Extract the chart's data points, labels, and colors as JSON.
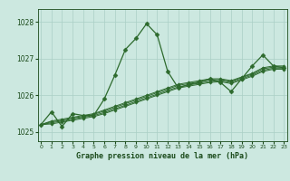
{
  "x": [
    0,
    1,
    2,
    3,
    4,
    5,
    6,
    7,
    8,
    9,
    10,
    11,
    12,
    13,
    14,
    15,
    16,
    17,
    18,
    19,
    20,
    21,
    22,
    23
  ],
  "y_main": [
    1025.2,
    1025.55,
    1025.15,
    1025.5,
    1025.45,
    1025.45,
    1025.9,
    1026.55,
    1027.25,
    1027.55,
    1027.95,
    1027.65,
    1026.65,
    1026.2,
    1026.3,
    1026.35,
    1026.45,
    1026.35,
    1026.1,
    1026.45,
    1026.8,
    1027.1,
    1026.8,
    1026.75
  ],
  "y_line2": [
    1025.2,
    1025.3,
    1025.35,
    1025.4,
    1025.45,
    1025.5,
    1025.6,
    1025.7,
    1025.8,
    1025.9,
    1026.0,
    1026.1,
    1026.2,
    1026.3,
    1026.35,
    1026.4,
    1026.45,
    1026.45,
    1026.4,
    1026.5,
    1026.6,
    1026.75,
    1026.8,
    1026.8
  ],
  "y_line3": [
    1025.2,
    1025.28,
    1025.32,
    1025.38,
    1025.42,
    1025.48,
    1025.57,
    1025.67,
    1025.77,
    1025.87,
    1025.97,
    1026.07,
    1026.17,
    1026.27,
    1026.32,
    1026.37,
    1026.42,
    1026.43,
    1026.38,
    1026.48,
    1026.58,
    1026.72,
    1026.77,
    1026.77
  ],
  "y_line4": [
    1025.2,
    1025.25,
    1025.3,
    1025.35,
    1025.4,
    1025.45,
    1025.53,
    1025.63,
    1025.73,
    1025.83,
    1025.93,
    1026.03,
    1026.13,
    1026.23,
    1026.28,
    1026.33,
    1026.38,
    1026.4,
    1026.35,
    1026.45,
    1026.55,
    1026.68,
    1026.74,
    1026.74
  ],
  "y_line5": [
    1025.2,
    1025.22,
    1025.27,
    1025.32,
    1025.37,
    1025.42,
    1025.5,
    1025.6,
    1025.7,
    1025.8,
    1025.9,
    1026.0,
    1026.1,
    1026.2,
    1026.25,
    1026.3,
    1026.35,
    1026.37,
    1026.32,
    1026.42,
    1026.52,
    1026.65,
    1026.71,
    1026.71
  ],
  "bg_color": "#cce8e0",
  "line_color": "#2d6a2d",
  "grid_color": "#aacfc5",
  "text_color": "#1a4a1a",
  "title": "Graphe pression niveau de la mer (hPa)",
  "yticks": [
    1025,
    1026,
    1027,
    1028
  ],
  "xtick_labels": [
    "0",
    "1",
    "2",
    "3",
    "4",
    "5",
    "6",
    "7",
    "8",
    "9",
    "10",
    "11",
    "12",
    "13",
    "14",
    "15",
    "16",
    "17",
    "18",
    "19",
    "20",
    "21",
    "22",
    "23"
  ],
  "ylim": [
    1024.75,
    1028.35
  ],
  "xlim": [
    -0.3,
    23.3
  ]
}
